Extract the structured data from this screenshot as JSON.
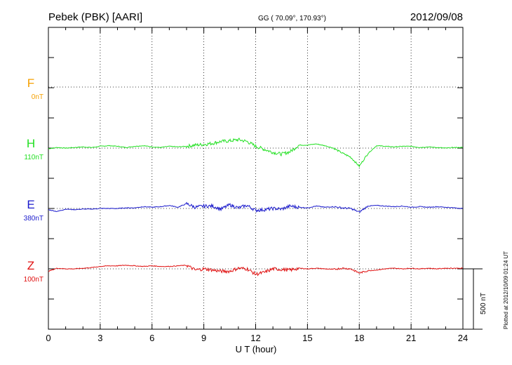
{
  "header": {
    "station": "Pebek (PBK)  [AARI]",
    "coords": "GG ( 70.09°, 170.93°)",
    "date": "2012/09/08"
  },
  "footer": {
    "plotted": "Plotted at 2012/10/09 01:24 UT",
    "scale_label": "500 nT"
  },
  "colors": {
    "F": "#f5a000",
    "H": "#22e022",
    "E": "#1a1acc",
    "Z": "#e01010"
  },
  "chart_data": {
    "type": "line",
    "xlabel": "U T (hour)",
    "xlim": [
      0,
      24
    ],
    "x_ticks": [
      "0",
      "3",
      "6",
      "9",
      "12",
      "15",
      "18",
      "21",
      "24"
    ],
    "scale_bar_nT": 500,
    "series": [
      {
        "name": "F",
        "baseline_label": "0nT",
        "values": []
      },
      {
        "name": "H",
        "baseline_label": "110nT",
        "x": [
          0,
          0.5,
          1,
          1.5,
          2,
          2.5,
          3,
          3.5,
          4,
          4.5,
          5,
          5.5,
          6,
          6.5,
          7,
          7.5,
          8,
          8.5,
          9,
          9.5,
          10,
          10.5,
          11,
          11.5,
          12,
          12.5,
          13,
          13.5,
          14,
          14.5,
          15,
          15.5,
          16,
          16.5,
          17,
          17.5,
          18,
          18.5,
          19,
          19.5,
          20,
          20.5,
          21,
          21.5,
          22,
          22.5,
          23,
          23.5,
          24
        ],
        "values": [
          -5,
          5,
          0,
          5,
          10,
          5,
          15,
          20,
          15,
          5,
          15,
          20,
          10,
          5,
          15,
          10,
          15,
          25,
          30,
          40,
          55,
          60,
          70,
          55,
          15,
          -10,
          -35,
          -50,
          -30,
          25,
          25,
          35,
          20,
          0,
          -40,
          -75,
          -150,
          -45,
          20,
          15,
          10,
          15,
          15,
          5,
          10,
          5,
          0,
          5,
          5
        ]
      },
      {
        "name": "E",
        "baseline_label": "380nT",
        "x": [
          0,
          0.5,
          1,
          1.5,
          2,
          2.5,
          3,
          3.5,
          4,
          4.5,
          5,
          5.5,
          6,
          6.5,
          7,
          7.5,
          8,
          8.5,
          9,
          9.5,
          10,
          10.5,
          11,
          11.5,
          12,
          12.5,
          13,
          13.5,
          14,
          14.5,
          15,
          15.5,
          16,
          16.5,
          17,
          17.5,
          18,
          18.5,
          19,
          19.5,
          20,
          20.5,
          21,
          21.5,
          22,
          22.5,
          23,
          23.5,
          24
        ],
        "values": [
          -10,
          -25,
          -5,
          -10,
          -5,
          -5,
          0,
          0,
          0,
          5,
          5,
          15,
          10,
          15,
          25,
          10,
          40,
          10,
          20,
          20,
          -5,
          30,
          5,
          25,
          -15,
          -10,
          0,
          -5,
          20,
          10,
          5,
          20,
          10,
          15,
          5,
          0,
          -30,
          20,
          25,
          20,
          15,
          20,
          10,
          15,
          10,
          15,
          10,
          5,
          0
        ]
      },
      {
        "name": "Z",
        "baseline_label": "100nT",
        "x": [
          0,
          0.5,
          1,
          1.5,
          2,
          2.5,
          3,
          3.5,
          4,
          4.5,
          5,
          5.5,
          6,
          6.5,
          7,
          7.5,
          8,
          8.5,
          9,
          9.5,
          10,
          10.5,
          11,
          11.5,
          12,
          12.5,
          13,
          13.5,
          14,
          14.5,
          15,
          15.5,
          16,
          16.5,
          17,
          17.5,
          18,
          18.5,
          19,
          19.5,
          20,
          20.5,
          21,
          21.5,
          22,
          22.5,
          23,
          23.5,
          24
        ],
        "values": [
          -20,
          5,
          0,
          0,
          5,
          10,
          20,
          25,
          25,
          30,
          25,
          20,
          25,
          20,
          20,
          25,
          30,
          -10,
          0,
          -10,
          -20,
          -20,
          5,
          0,
          -45,
          -30,
          0,
          -5,
          -10,
          5,
          0,
          5,
          0,
          -5,
          5,
          0,
          -35,
          -15,
          -10,
          0,
          5,
          0,
          5,
          0,
          5,
          0,
          5,
          5,
          5
        ]
      }
    ]
  }
}
